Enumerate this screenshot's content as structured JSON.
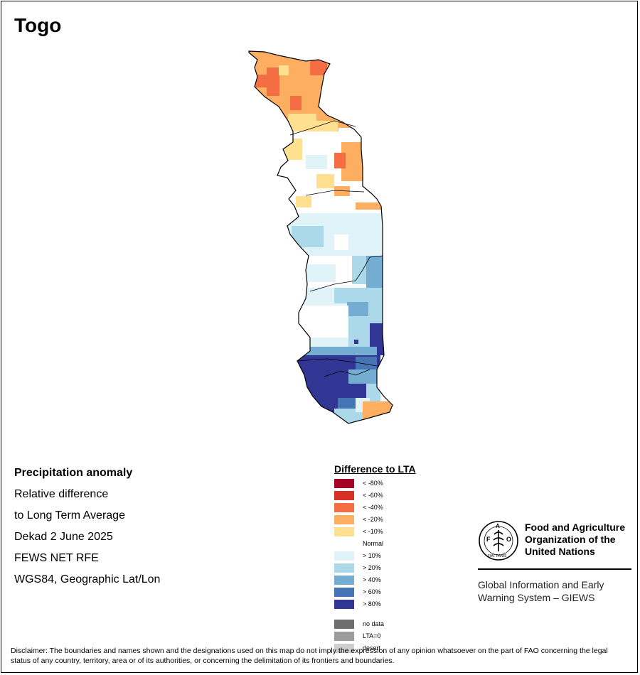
{
  "title": "Togo",
  "info": {
    "heading": "Precipitation anomaly",
    "line1": "Relative difference",
    "line2": "to Long Term Average",
    "line3": "Dekad 2 June 2025",
    "line4": "FEWS NET RFE",
    "line5": "WGS84, Geographic Lat/Lon"
  },
  "legend": {
    "title": "Difference to LTA",
    "classes": [
      {
        "label": "< -80%",
        "color": "#a50026"
      },
      {
        "label": "< -60%",
        "color": "#d73027"
      },
      {
        "label": "< -40%",
        "color": "#f46d43"
      },
      {
        "label": "< -20%",
        "color": "#fdae61"
      },
      {
        "label": "< -10%",
        "color": "#fee090"
      },
      {
        "label": "Normal",
        "color": "#ffffff"
      },
      {
        "label": "> 10%",
        "color": "#e0f3f8"
      },
      {
        "label": "> 20%",
        "color": "#abd9e9"
      },
      {
        "label": "> 40%",
        "color": "#74add1"
      },
      {
        "label": "> 60%",
        "color": "#4575b4"
      },
      {
        "label": "> 80%",
        "color": "#313695"
      }
    ],
    "extra": [
      {
        "label": "no data",
        "color": "#6e6e6e"
      },
      {
        "label": "LTA=0",
        "color": "#9c9c9c"
      },
      {
        "label": "desert",
        "color": "#cfcfcf"
      }
    ]
  },
  "fao": {
    "name_line1": "Food and Agriculture",
    "name_line2": "Organization of the",
    "name_line3": "United Nations",
    "seal_text": "FIAT PANIS",
    "giews_line1": "Global Information and Early",
    "giews_line2": "Warning System – GIEWS"
  },
  "disclaimer": "Disclaimer: The boundaries and names shown and the designations used on this map do not imply the expression of any opinion whatsoever on the part of FAO concerning the legal status of any country, territory, area or of its authorities, or concerning the delimitation of its frontiers and boundaries.",
  "map_cells": [
    {
      "row": 0,
      "left": "fdae61",
      "right": "f46d43",
      "mid": "fdae61"
    },
    {
      "row": 1,
      "left": "f46d43",
      "right": "fdae61",
      "mid": "fdae61"
    },
    {
      "row": 2,
      "left": "fee090",
      "right": "fdae61",
      "mid": "fdae61"
    },
    {
      "row": 3,
      "left": "fee090",
      "right": "fdae61",
      "mid": "ffffff"
    },
    {
      "row": 4,
      "left": "e0f3f8",
      "right": "ffffff",
      "mid": "ffffff"
    },
    {
      "row": 5,
      "left": "abd9e9",
      "right": "e0f3f8",
      "mid": "ffffff"
    },
    {
      "row": 6,
      "left": "ffffff",
      "right": "74add1",
      "mid": "e0f3f8"
    },
    {
      "row": 7,
      "left": "e0f3f8",
      "right": "74add1",
      "mid": "abd9e9"
    },
    {
      "row": 8,
      "left": "313695",
      "right": "313695",
      "mid": "4575b4"
    },
    {
      "row": 9,
      "left": "313695",
      "right": "fdae61",
      "mid": "abd9e9"
    }
  ]
}
